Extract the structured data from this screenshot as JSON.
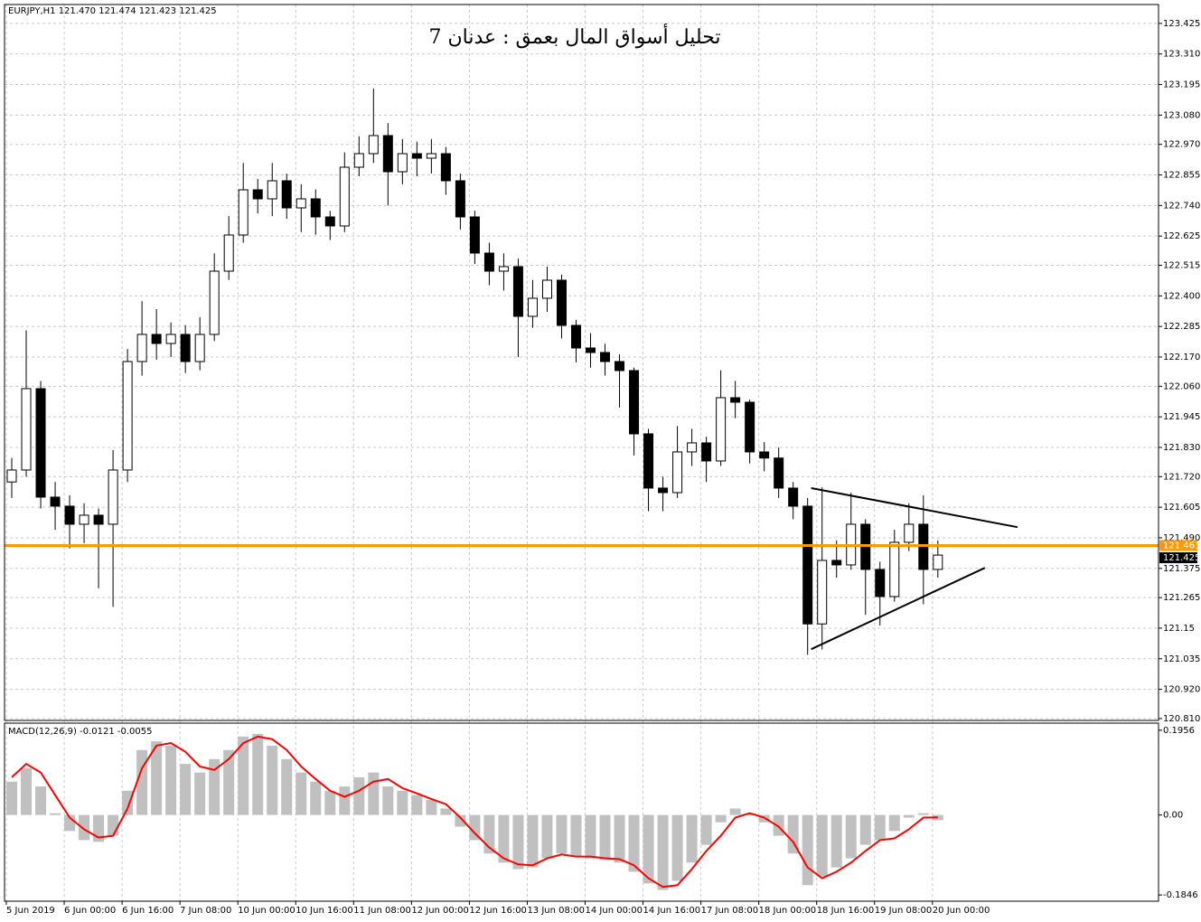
{
  "chart_data": [
    {
      "type": "candlestick",
      "header": "EURJPY,H1  121.470 121.474 121.423 121.425",
      "title": "تحليل أسواق المال بعمق : عدنان 7",
      "xlim": [
        0,
        319
      ],
      "xticks": [
        {
          "value": 0,
          "label": "5 Jun 2019"
        },
        {
          "value": 16,
          "label": "6 Jun 00:00"
        },
        {
          "value": 32,
          "label": "6 Jun 16:00"
        },
        {
          "value": 48,
          "label": "7 Jun 08:00"
        },
        {
          "value": 64,
          "label": "10 Jun 00:00"
        },
        {
          "value": 80,
          "label": "10 Jun 16:00"
        },
        {
          "value": 96,
          "label": "11 Jun 08:00"
        },
        {
          "value": 112,
          "label": "12 Jun 00:00"
        },
        {
          "value": 128,
          "label": "12 Jun 16:00"
        },
        {
          "value": 144,
          "label": "13 Jun 08:00"
        },
        {
          "value": 160,
          "label": "14 Jun 00:00"
        },
        {
          "value": 176,
          "label": "14 Jun 16:00"
        },
        {
          "value": 192,
          "label": "17 Jun 08:00"
        },
        {
          "value": 208,
          "label": "18 Jun 00:00"
        },
        {
          "value": 224,
          "label": "18 Jun 16:00"
        },
        {
          "value": 240,
          "label": "19 Jun 08:00"
        },
        {
          "value": 256,
          "label": "20 Jun 00:00"
        }
      ],
      "ylim": [
        120.803,
        123.496
      ],
      "yticks": [
        123.425,
        {
          "value": 123.31,
          "label": "123.310"
        },
        123.195,
        {
          "value": 123.08,
          "label": "123.080"
        },
        {
          "value": 122.97,
          "label": "122.970"
        },
        122.855,
        {
          "value": 122.74,
          "label": "122.740"
        },
        122.625,
        122.515,
        {
          "value": 122.4,
          "label": "122.400"
        },
        122.285,
        {
          "value": 122.17,
          "label": "122.170"
        },
        {
          "value": 122.06,
          "label": "122.060"
        },
        121.945,
        {
          "value": 121.83,
          "label": "121.830"
        },
        {
          "value": 121.72,
          "label": "121.720"
        },
        121.605,
        {
          "value": 121.49,
          "label": "121.490"
        },
        121.375,
        121.265,
        121.15,
        121.035,
        {
          "value": 120.92,
          "label": "120.920"
        },
        {
          "value": 120.81,
          "label": "120.810"
        }
      ],
      "grid": true,
      "color": "#000000",
      "open": [
        121.7,
        121.745,
        122.051,
        121.643,
        121.609,
        121.541,
        121.575,
        121.541,
        121.745,
        122.153,
        122.255,
        122.221,
        122.255,
        122.153,
        122.255,
        122.493,
        122.629,
        122.799,
        122.765,
        122.833,
        122.731,
        122.765,
        122.697,
        122.663,
        122.884,
        122.935,
        123.003,
        122.867,
        122.935,
        122.918,
        122.935,
        122.833,
        122.697,
        122.561,
        122.493,
        122.51,
        122.323,
        122.391,
        122.459,
        122.289,
        122.204,
        122.187,
        122.153,
        122.119,
        121.881,
        121.677,
        121.66,
        121.813,
        121.847,
        121.779,
        122.017,
        122.0,
        121.813,
        121.79,
        121.677,
        121.609,
        121.166,
        121.405,
        121.388,
        121.541,
        121.371,
        121.269,
        121.473,
        121.541,
        121.371
      ],
      "high": [
        121.79,
        122.27,
        122.08,
        121.7,
        121.65,
        121.62,
        121.6,
        121.82,
        122.2,
        122.38,
        122.35,
        122.3,
        122.29,
        122.32,
        122.56,
        122.7,
        122.9,
        122.84,
        122.9,
        122.86,
        122.82,
        122.8,
        122.72,
        122.94,
        123.0,
        123.18,
        123.05,
        122.99,
        122.98,
        122.99,
        122.96,
        122.86,
        122.72,
        122.6,
        122.56,
        122.54,
        122.46,
        122.51,
        122.48,
        122.31,
        122.26,
        122.22,
        122.18,
        122.13,
        121.9,
        121.72,
        121.91,
        121.9,
        121.87,
        122.12,
        122.08,
        122.01,
        121.85,
        121.83,
        121.7,
        121.64,
        121.68,
        121.48,
        121.66,
        121.56,
        121.4,
        121.52,
        121.62,
        121.65,
        121.48
      ],
      "low": [
        121.64,
        121.72,
        121.6,
        121.52,
        121.45,
        121.47,
        121.3,
        121.23,
        121.7,
        122.1,
        122.16,
        122.17,
        122.11,
        122.12,
        122.23,
        122.46,
        122.6,
        122.71,
        122.7,
        122.69,
        122.64,
        122.63,
        122.61,
        122.64,
        122.85,
        122.9,
        122.74,
        122.82,
        122.85,
        122.86,
        122.78,
        122.65,
        122.52,
        122.44,
        122.42,
        122.17,
        122.28,
        122.34,
        122.24,
        122.15,
        122.13,
        122.1,
        121.98,
        121.8,
        121.59,
        121.59,
        121.64,
        121.76,
        121.7,
        121.76,
        121.94,
        121.77,
        121.74,
        121.64,
        121.56,
        121.05,
        121.07,
        121.34,
        121.37,
        121.2,
        121.16,
        121.25,
        121.44,
        121.24,
        121.34
      ],
      "close": [
        121.745,
        122.051,
        121.643,
        121.609,
        121.541,
        121.575,
        121.541,
        121.745,
        122.153,
        122.255,
        122.221,
        122.255,
        122.153,
        122.255,
        122.493,
        122.629,
        122.799,
        122.765,
        122.833,
        122.731,
        122.765,
        122.697,
        122.663,
        122.884,
        122.935,
        123.003,
        122.867,
        122.935,
        122.918,
        122.935,
        122.833,
        122.697,
        122.561,
        122.493,
        122.51,
        122.323,
        122.391,
        122.459,
        122.289,
        122.204,
        122.187,
        122.153,
        122.119,
        121.881,
        121.677,
        121.66,
        121.813,
        121.847,
        121.779,
        122.017,
        122.0,
        121.813,
        121.79,
        121.677,
        121.609,
        121.166,
        121.405,
        121.388,
        121.541,
        121.371,
        121.269,
        121.473,
        121.541,
        121.371,
        121.425
      ],
      "price_line": {
        "value": 121.461,
        "color": "#ff9900"
      },
      "last_price": 121.425,
      "trend_lines": [
        {
          "x": [
            223,
            280
          ],
          "y": [
            121.677,
            121.53
          ]
        },
        {
          "x": [
            223,
            271
          ],
          "y": [
            121.071,
            121.377
          ]
        }
      ]
    },
    {
      "type": "macd",
      "label": "MACD(12,26,9) -0.0121 -0.0055",
      "ylim": [
        -0.199,
        0.212
      ],
      "yticks": [
        0.1956,
        {
          "value": 0,
          "label": "0.00"
        },
        -0.1846
      ],
      "histogram": {
        "color": "#c0c0c0",
        "values": [
          0.077,
          0.108,
          0.066,
          0.004,
          -0.037,
          -0.058,
          -0.062,
          -0.048,
          0.056,
          0.15,
          0.17,
          0.16,
          0.118,
          0.098,
          0.129,
          0.15,
          0.181,
          0.187,
          0.16,
          0.129,
          0.098,
          0.077,
          0.056,
          0.066,
          0.087,
          0.098,
          0.066,
          0.056,
          0.046,
          0.035,
          0.015,
          -0.027,
          -0.058,
          -0.089,
          -0.11,
          -0.125,
          -0.121,
          -0.1,
          -0.089,
          -0.096,
          -0.1,
          -0.104,
          -0.11,
          -0.131,
          -0.158,
          -0.173,
          -0.152,
          -0.11,
          -0.069,
          -0.017,
          0.015,
          0.004,
          -0.017,
          -0.048,
          -0.089,
          -0.162,
          -0.141,
          -0.121,
          -0.1,
          -0.069,
          -0.058,
          -0.037,
          -0.006,
          0.004,
          -0.0121
        ]
      },
      "signal": {
        "color": "#ff0000",
        "values": [
          0.087,
          0.118,
          0.098,
          0.046,
          -0.006,
          -0.033,
          -0.052,
          -0.048,
          0.015,
          0.108,
          0.16,
          0.166,
          0.146,
          0.112,
          0.104,
          0.129,
          0.166,
          0.181,
          0.175,
          0.15,
          0.112,
          0.083,
          0.056,
          0.042,
          0.056,
          0.077,
          0.083,
          0.062,
          0.05,
          0.037,
          0.025,
          -0.006,
          -0.042,
          -0.075,
          -0.1,
          -0.114,
          -0.116,
          -0.1,
          -0.091,
          -0.096,
          -0.096,
          -0.1,
          -0.102,
          -0.116,
          -0.146,
          -0.166,
          -0.162,
          -0.125,
          -0.083,
          -0.048,
          -0.006,
          0.004,
          -0.006,
          -0.027,
          -0.062,
          -0.121,
          -0.146,
          -0.131,
          -0.11,
          -0.083,
          -0.058,
          -0.054,
          -0.033,
          -0.006,
          -0.0055
        ]
      }
    }
  ]
}
